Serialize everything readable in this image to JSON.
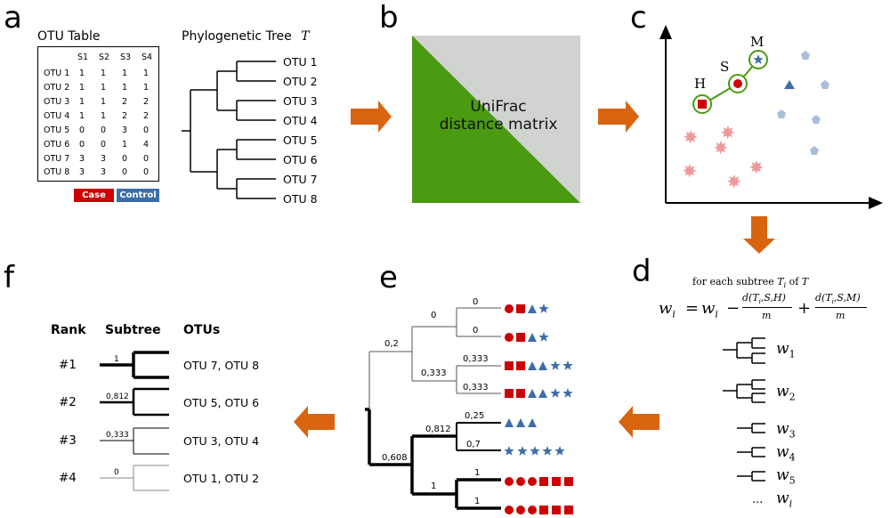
{
  "panels": {
    "a": "a",
    "b": "b",
    "c": "c",
    "d": "d",
    "e": "e",
    "f": "f"
  },
  "panel_a": {
    "table_title": "OTU Table",
    "columns": [
      "S1",
      "S2",
      "S3",
      "S4"
    ],
    "rows": [
      {
        "label": "OTU 1",
        "values": [
          "1",
          "1",
          "1",
          "1"
        ]
      },
      {
        "label": "OTU 2",
        "values": [
          "1",
          "1",
          "1",
          "1"
        ]
      },
      {
        "label": "OTU 3",
        "values": [
          "1",
          "1",
          "2",
          "2"
        ]
      },
      {
        "label": "OTU 4",
        "values": [
          "1",
          "1",
          "2",
          "2"
        ]
      },
      {
        "label": "OTU 5",
        "values": [
          "0",
          "0",
          "3",
          "0"
        ]
      },
      {
        "label": "OTU 6",
        "values": [
          "0",
          "0",
          "1",
          "4"
        ]
      },
      {
        "label": "OTU 7",
        "values": [
          "3",
          "3",
          "0",
          "0"
        ]
      },
      {
        "label": "OTU 8",
        "values": [
          "3",
          "3",
          "0",
          "0"
        ]
      }
    ],
    "case_label": "Case",
    "control_label": "Control",
    "case_color": "#cc0000",
    "control_color": "#3b6ea8",
    "tree_title": "Phylogenetic Tree",
    "tree_symbol": "T",
    "tree_leaves": [
      "OTU 1",
      "OTU 2",
      "OTU 3",
      "OTU 4",
      "OTU 5",
      "OTU 6",
      "OTU 7",
      "OTU 8"
    ]
  },
  "panel_b": {
    "line1": "UniFrac",
    "line2": "distance matrix",
    "green": "#4a9a12",
    "gray": "#d0d3cf"
  },
  "panel_c": {
    "label_h": "H",
    "label_s": "S",
    "label_m": "M",
    "circle_color": "#4a9a12"
  },
  "panel_d": {
    "caption_prefix": "for each subtree",
    "caption_var": "T",
    "caption_sub": "i",
    "caption_of": "of",
    "caption_tree": "T",
    "weights": [
      "w1",
      "w2",
      "w3",
      "w4",
      "w5",
      "wi"
    ],
    "ellipsis": "..."
  },
  "panel_e": {
    "branch_labels": [
      "0",
      "0",
      "0",
      "0,2",
      "0,333",
      "0,333",
      "0,333",
      "0,25",
      "0,812",
      "0,7",
      "0,608",
      "1",
      "1",
      "1"
    ]
  },
  "panel_f": {
    "header_rank": "Rank",
    "header_subtree": "Subtree",
    "header_otus": "OTUs",
    "rows": [
      {
        "rank": "#1",
        "weight": "1",
        "otus": "OTU 7, OTU 8"
      },
      {
        "rank": "#2",
        "weight": "0,812",
        "otus": "OTU 5, OTU 6"
      },
      {
        "rank": "#3",
        "weight": "0,333",
        "otus": "OTU 3, OTU 4"
      },
      {
        "rank": "#4",
        "weight": "0",
        "otus": "OTU 1, OTU 2"
      }
    ]
  },
  "colors": {
    "arrow": "#d9640f",
    "red": "#cc0000",
    "blue": "#3b6ea8",
    "light_blue": "#a9bdd8",
    "pink": "#ef9a9a"
  }
}
